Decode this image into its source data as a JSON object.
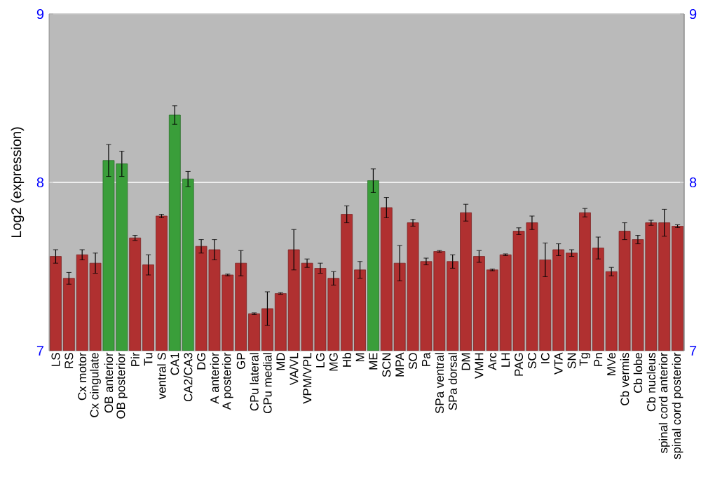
{
  "chart_data": {
    "type": "bar",
    "ylabel": "Log2 (expression)",
    "categories": [
      "LS",
      "RS",
      "Cx motor",
      "Cx cingulate",
      "OB anterior",
      "OB posterior",
      "Pir",
      "Tu",
      "ventral S",
      "CA1",
      "CA2/CA3",
      "DG",
      "A anterior",
      "A posterior",
      "GP",
      "CPu lateral",
      "CPu medial",
      "MD",
      "VA/VL",
      "VPM/VPL",
      "LG",
      "MG",
      "Hb",
      "M",
      "ME",
      "SCN",
      "MPA",
      "SO",
      "Pa",
      "SPa ventral",
      "SPa dorsal",
      "DM",
      "VMH",
      "Arc",
      "LH",
      "PAG",
      "SC",
      "IC",
      "VTA",
      "SN",
      "Tg",
      "Pn",
      "MVe",
      "Cb vermis",
      "Cb lobe",
      "Cb nucleus",
      "spinal cord anterior",
      "spinal cord posterior"
    ],
    "values": [
      7.56,
      7.43,
      7.57,
      7.52,
      8.13,
      8.11,
      7.67,
      7.51,
      7.8,
      8.4,
      8.02,
      7.62,
      7.6,
      7.45,
      7.52,
      7.22,
      7.25,
      7.34,
      7.6,
      7.52,
      7.49,
      7.43,
      7.81,
      7.48,
      8.01,
      7.85,
      7.52,
      7.76,
      7.53,
      7.59,
      7.53,
      7.82,
      7.56,
      7.48,
      7.57,
      7.71,
      7.76,
      7.54,
      7.6,
      7.58,
      7.82,
      7.61,
      7.47,
      7.71,
      7.66,
      7.76,
      7.76,
      7.74
    ],
    "errors": [
      0.04,
      0.035,
      0.03,
      0.06,
      0.095,
      0.075,
      0.015,
      0.06,
      0.01,
      0.055,
      0.045,
      0.04,
      0.06,
      0.005,
      0.075,
      0.005,
      0.1,
      0.005,
      0.12,
      0.025,
      0.03,
      0.04,
      0.05,
      0.05,
      0.07,
      0.06,
      0.105,
      0.02,
      0.02,
      0.005,
      0.04,
      0.05,
      0.035,
      0.005,
      0.005,
      0.02,
      0.04,
      0.1,
      0.035,
      0.02,
      0.025,
      0.065,
      0.025,
      0.05,
      0.025,
      0.015,
      0.08,
      0.008
    ],
    "colors": [
      "#b03030",
      "#b03030",
      "#b03030",
      "#b03030",
      "#3a9e3a",
      "#3a9e3a",
      "#b03030",
      "#b03030",
      "#b03030",
      "#3a9e3a",
      "#3a9e3a",
      "#b03030",
      "#b03030",
      "#b03030",
      "#b03030",
      "#b03030",
      "#b03030",
      "#b03030",
      "#b03030",
      "#b03030",
      "#b03030",
      "#b03030",
      "#b03030",
      "#b03030",
      "#3a9e3a",
      "#b03030",
      "#b03030",
      "#b03030",
      "#b03030",
      "#b03030",
      "#b03030",
      "#b03030",
      "#b03030",
      "#b03030",
      "#b03030",
      "#b03030",
      "#b03030",
      "#b03030",
      "#b03030",
      "#b03030",
      "#b03030",
      "#b03030",
      "#b03030",
      "#b03030",
      "#b03030",
      "#b03030",
      "#b03030",
      "#b03030"
    ],
    "ylim": [
      7,
      9
    ],
    "yticks": [
      7,
      8,
      9
    ],
    "y2lim": [
      7,
      9
    ],
    "y2ticks": [
      7,
      8,
      9
    ],
    "grid": "y"
  }
}
